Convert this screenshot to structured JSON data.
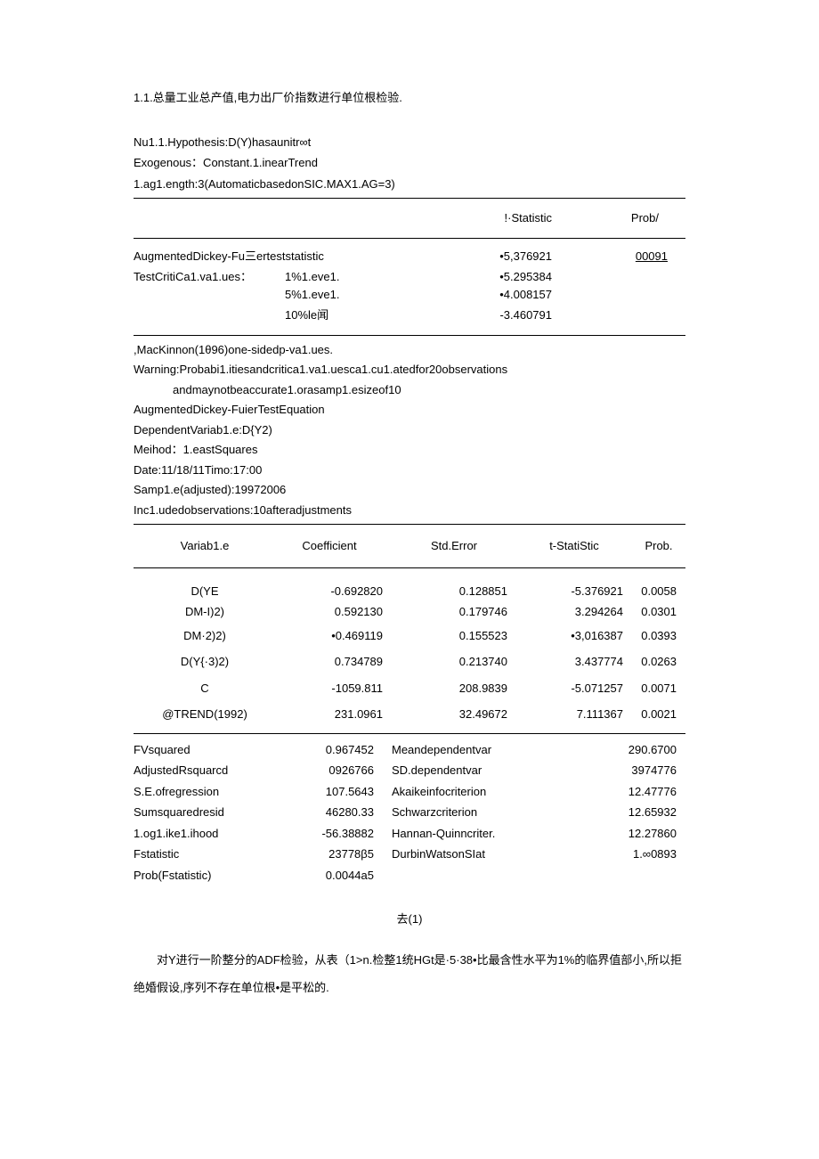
{
  "title": "1.1.总量工业总产值,电力出厂价指数进行单位根检验.",
  "header": {
    "l1": "Nu1.1.Hypothesis:D(Y)hasaunitr∞t",
    "l2": "Exogenous：Constant.1.inearTrend",
    "l3": "1.ag1.ength:3(AutomaticbasedonSIC.MAX1.AG=3)"
  },
  "statHeader": {
    "t": "!·Statistic",
    "p": "Prob/"
  },
  "adf": {
    "label": "AugmentedDickey-Fu三erteststatistic",
    "t": "•5,376921",
    "p": "00091"
  },
  "crit": {
    "label": "TestCritiCa1.va1.ues：",
    "r1": {
      "level": "1%1.eve1.",
      "t": "•5.295384"
    },
    "r2": {
      "level": "5%1.eve1.",
      "t": "•4.008157"
    },
    "r3": {
      "level": "10%le闻",
      "t": "-3.460791"
    }
  },
  "notes": {
    "n1": ",MacKinnon(1θ96)one-sidedp-va1.ues.",
    "n2": "Warning:Probabi1.itiesandcritica1.va1.uesca1.cu1.atedfor20observations",
    "n3": "andmaynotbeaccurate1.orasamp1.esizeof10",
    "n4": "AugmentedDickey-FuierTestEquation",
    "n5": "DependentVariab1.e:D{Y2)",
    "n6": "Meihod：1.eastSquares",
    "n7": "Date:11/18/11Timo:17:00",
    "n8": "Samp1.e(adjusted):19972006",
    "n9": "Inc1.udedobservations:10afteradjustments"
  },
  "coefHeader": {
    "v": "Variab1.e",
    "c": "Coefficient",
    "s": "Std.Error",
    "t": "t-StatiStic",
    "p": "Prob."
  },
  "rows": [
    {
      "v": "D(YE",
      "c": "-0.692820",
      "s": "0.128851",
      "t": "-5.376921",
      "p": "0.0058"
    },
    {
      "v": "DM-I)2)",
      "c": "0.592130",
      "s": "0.179746",
      "t": "3.294264",
      "p": "0.0301"
    },
    {
      "v": "DM·2)2)",
      "c": "•0.469119",
      "s": "0.155523",
      "t": "•3,016387",
      "p": "0.0393"
    },
    {
      "v": "D(Y{·3)2)",
      "c": "0.734789",
      "s": "0.213740",
      "t": "3.437774",
      "p": "0.0263"
    },
    {
      "v": "C",
      "c": "-1059.811",
      "s": "208.9839",
      "t": "-5.071257",
      "p": "0.0071"
    },
    {
      "v": "@TREND(1992)",
      "c": "231.0961",
      "s": "32.49672",
      "t": "7.111367",
      "p": "0.0021"
    }
  ],
  "summary": [
    {
      "l1": "FVsquared",
      "v1": "0.967452",
      "l2": "Meandependentvar",
      "v2": "290.6700"
    },
    {
      "l1": "AdjustedRsquarcd",
      "v1": "0926766",
      "l2": "SD.dependentvar",
      "v2": "3974776"
    },
    {
      "l1": "S.E.ofregression",
      "v1": "107.5643",
      "l2": "Akaikeinfocriterion",
      "v2": "12.47776"
    },
    {
      "l1": "Sumsquaredresid",
      "v1": "46280.33",
      "l2": "Schwarzcriterion",
      "v2": "12.65932"
    },
    {
      "l1": "1.og1.ike1.ihood",
      "v1": "-56.38882",
      "l2": "Hannan-Quinncriter.",
      "v2": "12.27860"
    },
    {
      "l1": "Fstatistic",
      "v1": "23778β5",
      "l2": "DurbinWatsonSIat",
      "v2": "1.∞0893"
    },
    {
      "l1": "Prob(Fstatistic)",
      "v1": "0.0044a5",
      "l2": "",
      "v2": ""
    }
  ],
  "figureLabel": "去(1)",
  "bodyText": "对Y进行一阶整分的ADF检验，从表（1>n.检整1统HGt是·5·38•比最含性水平为1%的临界值部小,所以拒绝婚假设,序列不存在单位根•是平松的."
}
